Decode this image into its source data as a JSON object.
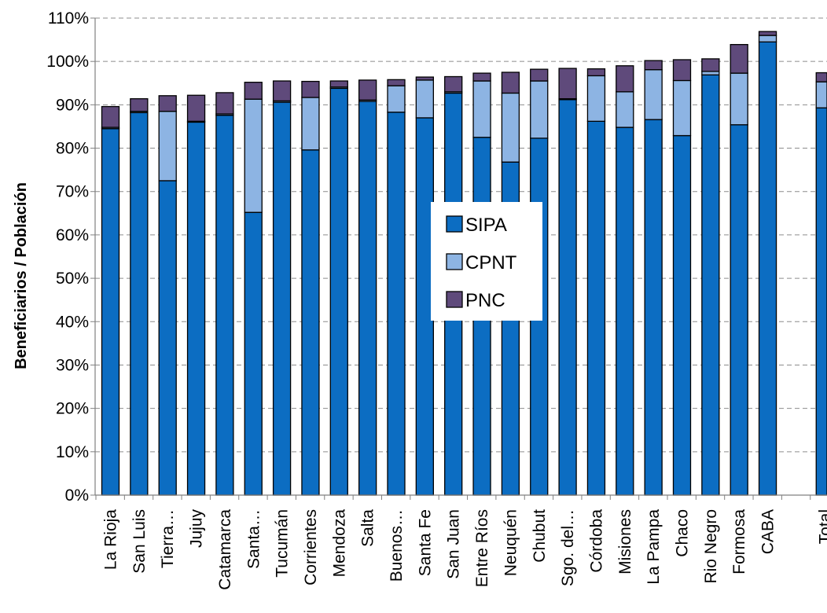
{
  "chart_data": {
    "type": "bar",
    "stacked": true,
    "title": "",
    "xlabel": "",
    "ylabel": "Beneficiarios  /  Población",
    "ylim": [
      0,
      110
    ],
    "yticks": [
      "0%",
      "10%",
      "20%",
      "30%",
      "40%",
      "50%",
      "60%",
      "70%",
      "80%",
      "90%",
      "100%",
      "110%"
    ],
    "grid": "horizontal dashed",
    "legend_position": "center",
    "categories": [
      "La Rioja",
      "San Luis",
      "Tierra…",
      "Jujuy",
      "Catamarca",
      "Santa…",
      "Tucumán",
      "Corrientes",
      "Mendoza",
      "Salta",
      "Buenos…",
      "Santa Fe",
      "San Juan",
      "Entre Ríos",
      "Neuquén",
      "Chubut",
      "Sgo. del…",
      "Córdoba",
      "Misiones",
      "La Pampa",
      "Chaco",
      "Rio Negro",
      "Formosa",
      "CABA",
      "",
      "Total"
    ],
    "series": [
      {
        "name": "SIPA",
        "color": "#0c6dc2",
        "values": [
          84.5,
          88.2,
          72.5,
          86.0,
          87.6,
          65.2,
          90.6,
          79.6,
          93.8,
          90.8,
          88.3,
          87.0,
          92.7,
          82.5,
          76.8,
          82.3,
          91.2,
          86.2,
          84.8,
          86.6,
          82.9,
          96.9,
          85.4,
          104.5,
          null,
          89.3
        ]
      },
      {
        "name": "CPNT",
        "color": "#8db4e3",
        "values": [
          0.3,
          0.3,
          16.0,
          0.2,
          0.3,
          26.1,
          0.3,
          12.1,
          0.3,
          0.3,
          6.1,
          8.7,
          0.3,
          13.0,
          15.9,
          13.2,
          0.2,
          10.5,
          8.2,
          11.5,
          12.7,
          0.8,
          11.9,
          1.5,
          null,
          6.0
        ]
      },
      {
        "name": "PNC",
        "color": "#5f4a7b",
        "values": [
          4.8,
          2.9,
          3.6,
          6.0,
          4.9,
          3.9,
          4.6,
          3.7,
          1.4,
          4.6,
          1.4,
          0.7,
          3.5,
          1.8,
          4.8,
          2.7,
          7.0,
          1.6,
          6.0,
          2.1,
          4.8,
          2.9,
          6.6,
          0.9,
          null,
          2.1
        ]
      }
    ]
  }
}
